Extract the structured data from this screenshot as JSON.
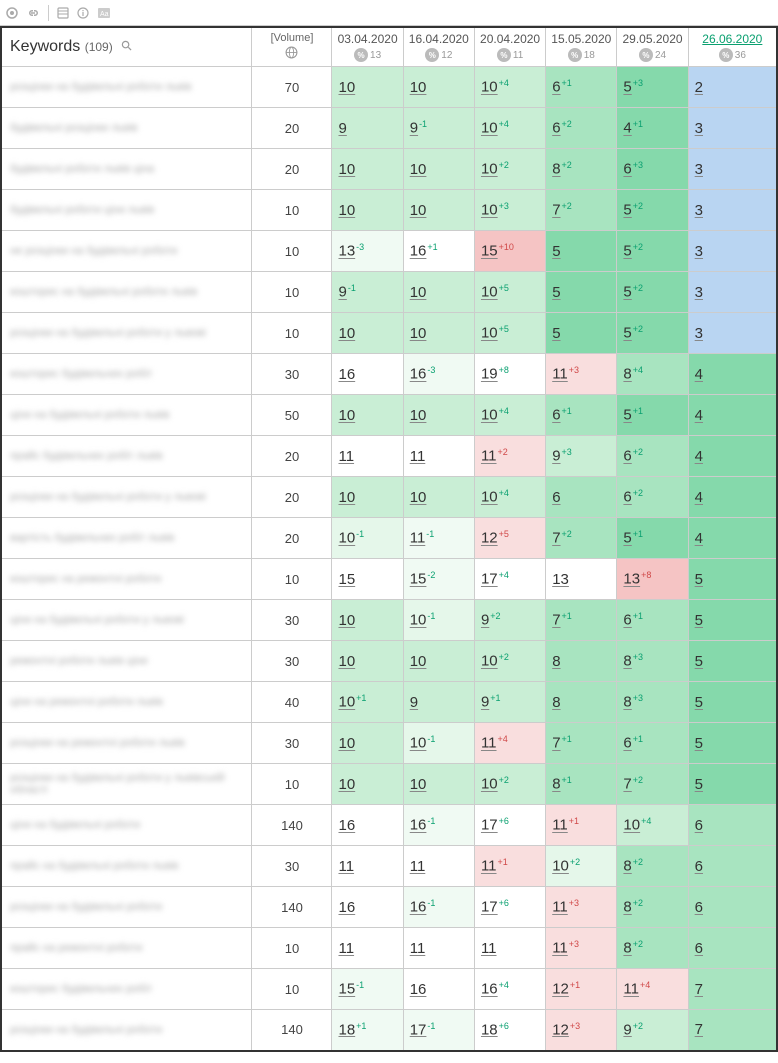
{
  "colors": {
    "blue": "#b9d5f2",
    "green_strong": "#85d9ab",
    "green_mid": "#a8e4c0",
    "green_light": "#c9eed5",
    "green_pale": "#e5f7ea",
    "green_faint": "#f0faf3",
    "red_light": "#f5c4c4",
    "red_pale": "#f9dede",
    "white": "#ffffff",
    "delta_up": "#0aa070",
    "delta_down": "#d04848"
  },
  "header": {
    "keywords_label": "Keywords",
    "keywords_count": "(109)",
    "volume_label": "[Volume]",
    "dates": [
      {
        "label": "03.04.2020",
        "sub": "13",
        "current": false
      },
      {
        "label": "16.04.2020",
        "sub": "12",
        "current": false
      },
      {
        "label": "20.04.2020",
        "sub": "11",
        "current": false
      },
      {
        "label": "15.05.2020",
        "sub": "18",
        "current": false
      },
      {
        "label": "29.05.2020",
        "sub": "24",
        "current": false
      },
      {
        "label": "26.06.2020",
        "sub": "36",
        "current": true
      }
    ]
  },
  "rows": [
    {
      "kw": "розцінки на будівельні роботи львів",
      "vol": "70",
      "cells": [
        {
          "v": "10",
          "d": null,
          "bg": "green_light"
        },
        {
          "v": "10",
          "d": null,
          "bg": "green_light"
        },
        {
          "v": "10",
          "d": "+4",
          "bg": "green_light"
        },
        {
          "v": "6",
          "d": "+1",
          "bg": "green_mid"
        },
        {
          "v": "5",
          "d": "+3",
          "bg": "green_strong"
        },
        {
          "v": "2",
          "d": null,
          "bg": "blue"
        }
      ]
    },
    {
      "kw": "будівельні розцінки львів",
      "vol": "20",
      "cells": [
        {
          "v": "9",
          "d": null,
          "bg": "green_light"
        },
        {
          "v": "9",
          "d": "-1",
          "bg": "green_light"
        },
        {
          "v": "10",
          "d": "+4",
          "bg": "green_light"
        },
        {
          "v": "6",
          "d": "+2",
          "bg": "green_mid"
        },
        {
          "v": "4",
          "d": "+1",
          "bg": "green_strong"
        },
        {
          "v": "3",
          "d": null,
          "bg": "blue"
        }
      ]
    },
    {
      "kw": "будівельні роботи львів ціна",
      "vol": "20",
      "cells": [
        {
          "v": "10",
          "d": null,
          "bg": "green_light"
        },
        {
          "v": "10",
          "d": null,
          "bg": "green_light"
        },
        {
          "v": "10",
          "d": "+2",
          "bg": "green_light"
        },
        {
          "v": "8",
          "d": "+2",
          "bg": "green_mid"
        },
        {
          "v": "6",
          "d": "+3",
          "bg": "green_strong"
        },
        {
          "v": "3",
          "d": null,
          "bg": "blue"
        }
      ]
    },
    {
      "kw": "будівельні роботи ціни львів",
      "vol": "10",
      "cells": [
        {
          "v": "10",
          "d": null,
          "bg": "green_light"
        },
        {
          "v": "10",
          "d": null,
          "bg": "green_light"
        },
        {
          "v": "10",
          "d": "+3",
          "bg": "green_light"
        },
        {
          "v": "7",
          "d": "+2",
          "bg": "green_mid"
        },
        {
          "v": "5",
          "d": "+2",
          "bg": "green_strong"
        },
        {
          "v": "3",
          "d": null,
          "bg": "blue"
        }
      ]
    },
    {
      "kw": "не розцінки на будівельні роботи",
      "vol": "10",
      "cells": [
        {
          "v": "13",
          "d": "-3",
          "bg": "green_faint"
        },
        {
          "v": "16",
          "d": "+1",
          "bg": "white"
        },
        {
          "v": "15",
          "d": "+10",
          "bg": "red_light"
        },
        {
          "v": "5",
          "d": null,
          "bg": "green_strong"
        },
        {
          "v": "5",
          "d": "+2",
          "bg": "green_strong"
        },
        {
          "v": "3",
          "d": null,
          "bg": "blue"
        }
      ]
    },
    {
      "kw": "кошторис на будівельні роботи львів",
      "vol": "10",
      "cells": [
        {
          "v": "9",
          "d": "-1",
          "bg": "green_light"
        },
        {
          "v": "10",
          "d": null,
          "bg": "green_light"
        },
        {
          "v": "10",
          "d": "+5",
          "bg": "green_light"
        },
        {
          "v": "5",
          "d": null,
          "bg": "green_strong"
        },
        {
          "v": "5",
          "d": "+2",
          "bg": "green_strong"
        },
        {
          "v": "3",
          "d": null,
          "bg": "blue"
        }
      ]
    },
    {
      "kw": "розцінки на будівельні роботи у львові",
      "vol": "10",
      "cells": [
        {
          "v": "10",
          "d": null,
          "bg": "green_light"
        },
        {
          "v": "10",
          "d": null,
          "bg": "green_light"
        },
        {
          "v": "10",
          "d": "+5",
          "bg": "green_light"
        },
        {
          "v": "5",
          "d": null,
          "bg": "green_strong"
        },
        {
          "v": "5",
          "d": "+2",
          "bg": "green_strong"
        },
        {
          "v": "3",
          "d": null,
          "bg": "blue"
        }
      ]
    },
    {
      "kw": "кошторис будівельних робіт",
      "vol": "30",
      "cells": [
        {
          "v": "16",
          "d": null,
          "bg": "white"
        },
        {
          "v": "16",
          "d": "-3",
          "bg": "green_faint"
        },
        {
          "v": "19",
          "d": "+8",
          "bg": "white"
        },
        {
          "v": "11",
          "d": "+3",
          "bg": "red_pale"
        },
        {
          "v": "8",
          "d": "+4",
          "bg": "green_mid"
        },
        {
          "v": "4",
          "d": null,
          "bg": "green_strong"
        }
      ]
    },
    {
      "kw": "ціни на будівельні роботи львів",
      "vol": "50",
      "cells": [
        {
          "v": "10",
          "d": null,
          "bg": "green_light"
        },
        {
          "v": "10",
          "d": null,
          "bg": "green_light"
        },
        {
          "v": "10",
          "d": "+4",
          "bg": "green_light"
        },
        {
          "v": "6",
          "d": "+1",
          "bg": "green_mid"
        },
        {
          "v": "5",
          "d": "+1",
          "bg": "green_strong"
        },
        {
          "v": "4",
          "d": null,
          "bg": "green_strong"
        }
      ]
    },
    {
      "kw": "прайс будівельних робіт львів",
      "vol": "20",
      "cells": [
        {
          "v": "11",
          "d": null,
          "bg": "white"
        },
        {
          "v": "11",
          "d": null,
          "bg": "white"
        },
        {
          "v": "11",
          "d": "+2",
          "bg": "red_pale"
        },
        {
          "v": "9",
          "d": "+3",
          "bg": "green_light"
        },
        {
          "v": "6",
          "d": "+2",
          "bg": "green_mid"
        },
        {
          "v": "4",
          "d": null,
          "bg": "green_strong"
        }
      ]
    },
    {
      "kw": "розцінки на будівельні роботи у львові",
      "vol": "20",
      "cells": [
        {
          "v": "10",
          "d": null,
          "bg": "green_light"
        },
        {
          "v": "10",
          "d": null,
          "bg": "green_light"
        },
        {
          "v": "10",
          "d": "+4",
          "bg": "green_light"
        },
        {
          "v": "6",
          "d": null,
          "bg": "green_mid"
        },
        {
          "v": "6",
          "d": "+2",
          "bg": "green_mid"
        },
        {
          "v": "4",
          "d": null,
          "bg": "green_strong"
        }
      ]
    },
    {
      "kw": "вартість будівельних робіт львів",
      "vol": "20",
      "cells": [
        {
          "v": "10",
          "d": "-1",
          "bg": "green_pale"
        },
        {
          "v": "11",
          "d": "-1",
          "bg": "green_faint"
        },
        {
          "v": "12",
          "d": "+5",
          "bg": "red_pale"
        },
        {
          "v": "7",
          "d": "+2",
          "bg": "green_mid"
        },
        {
          "v": "5",
          "d": "+1",
          "bg": "green_strong"
        },
        {
          "v": "4",
          "d": null,
          "bg": "green_strong"
        }
      ]
    },
    {
      "kw": "кошторис на ремонтні роботи",
      "vol": "10",
      "cells": [
        {
          "v": "15",
          "d": null,
          "bg": "white"
        },
        {
          "v": "15",
          "d": "-2",
          "bg": "green_faint"
        },
        {
          "v": "17",
          "d": "+4",
          "bg": "white"
        },
        {
          "v": "13",
          "d": null,
          "bg": "white"
        },
        {
          "v": "13",
          "d": "+8",
          "bg": "red_light"
        },
        {
          "v": "5",
          "d": null,
          "bg": "green_strong"
        }
      ]
    },
    {
      "kw": "ціни на будівельні роботи у львові",
      "vol": "30",
      "cells": [
        {
          "v": "10",
          "d": null,
          "bg": "green_light"
        },
        {
          "v": "10",
          "d": "-1",
          "bg": "green_pale"
        },
        {
          "v": "9",
          "d": "+2",
          "bg": "green_light"
        },
        {
          "v": "7",
          "d": "+1",
          "bg": "green_mid"
        },
        {
          "v": "6",
          "d": "+1",
          "bg": "green_mid"
        },
        {
          "v": "5",
          "d": null,
          "bg": "green_strong"
        }
      ]
    },
    {
      "kw": "ремонтні роботи львів ціни",
      "vol": "30",
      "cells": [
        {
          "v": "10",
          "d": null,
          "bg": "green_light"
        },
        {
          "v": "10",
          "d": null,
          "bg": "green_light"
        },
        {
          "v": "10",
          "d": "+2",
          "bg": "green_light"
        },
        {
          "v": "8",
          "d": null,
          "bg": "green_mid"
        },
        {
          "v": "8",
          "d": "+3",
          "bg": "green_mid"
        },
        {
          "v": "5",
          "d": null,
          "bg": "green_strong"
        }
      ]
    },
    {
      "kw": "ціни на ремонтні роботи львів",
      "vol": "40",
      "cells": [
        {
          "v": "10",
          "d": "+1",
          "bg": "green_light"
        },
        {
          "v": "9",
          "d": null,
          "bg": "green_light"
        },
        {
          "v": "9",
          "d": "+1",
          "bg": "green_light"
        },
        {
          "v": "8",
          "d": null,
          "bg": "green_mid"
        },
        {
          "v": "8",
          "d": "+3",
          "bg": "green_mid"
        },
        {
          "v": "5",
          "d": null,
          "bg": "green_strong"
        }
      ]
    },
    {
      "kw": "розцінки на ремонтні роботи львів",
      "vol": "30",
      "cells": [
        {
          "v": "10",
          "d": null,
          "bg": "green_light"
        },
        {
          "v": "10",
          "d": "-1",
          "bg": "green_pale"
        },
        {
          "v": "11",
          "d": "+4",
          "bg": "red_pale"
        },
        {
          "v": "7",
          "d": "+1",
          "bg": "green_mid"
        },
        {
          "v": "6",
          "d": "+1",
          "bg": "green_mid"
        },
        {
          "v": "5",
          "d": null,
          "bg": "green_strong"
        }
      ]
    },
    {
      "kw": "розцінки на будівельні роботи у львівській області",
      "vol": "10",
      "cells": [
        {
          "v": "10",
          "d": null,
          "bg": "green_light"
        },
        {
          "v": "10",
          "d": null,
          "bg": "green_light"
        },
        {
          "v": "10",
          "d": "+2",
          "bg": "green_light"
        },
        {
          "v": "8",
          "d": "+1",
          "bg": "green_mid"
        },
        {
          "v": "7",
          "d": "+2",
          "bg": "green_mid"
        },
        {
          "v": "5",
          "d": null,
          "bg": "green_strong"
        }
      ]
    },
    {
      "kw": "ціни на будівельні роботи",
      "vol": "140",
      "cells": [
        {
          "v": "16",
          "d": null,
          "bg": "white"
        },
        {
          "v": "16",
          "d": "-1",
          "bg": "green_faint"
        },
        {
          "v": "17",
          "d": "+6",
          "bg": "white"
        },
        {
          "v": "11",
          "d": "+1",
          "bg": "red_pale"
        },
        {
          "v": "10",
          "d": "+4",
          "bg": "green_light"
        },
        {
          "v": "6",
          "d": null,
          "bg": "green_mid"
        }
      ]
    },
    {
      "kw": "прайс на будівельні роботи львів",
      "vol": "30",
      "cells": [
        {
          "v": "11",
          "d": null,
          "bg": "white"
        },
        {
          "v": "11",
          "d": null,
          "bg": "white"
        },
        {
          "v": "11",
          "d": "+1",
          "bg": "red_pale"
        },
        {
          "v": "10",
          "d": "+2",
          "bg": "green_pale"
        },
        {
          "v": "8",
          "d": "+2",
          "bg": "green_mid"
        },
        {
          "v": "6",
          "d": null,
          "bg": "green_mid"
        }
      ]
    },
    {
      "kw": "розцінки на будівельні роботи",
      "vol": "140",
      "cells": [
        {
          "v": "16",
          "d": null,
          "bg": "white"
        },
        {
          "v": "16",
          "d": "-1",
          "bg": "green_faint"
        },
        {
          "v": "17",
          "d": "+6",
          "bg": "white"
        },
        {
          "v": "11",
          "d": "+3",
          "bg": "red_pale"
        },
        {
          "v": "8",
          "d": "+2",
          "bg": "green_mid"
        },
        {
          "v": "6",
          "d": null,
          "bg": "green_mid"
        }
      ]
    },
    {
      "kw": "прайс на ремонтні роботи",
      "vol": "10",
      "cells": [
        {
          "v": "11",
          "d": null,
          "bg": "white"
        },
        {
          "v": "11",
          "d": null,
          "bg": "white"
        },
        {
          "v": "11",
          "d": null,
          "bg": "white"
        },
        {
          "v": "11",
          "d": "+3",
          "bg": "red_pale"
        },
        {
          "v": "8",
          "d": "+2",
          "bg": "green_mid"
        },
        {
          "v": "6",
          "d": null,
          "bg": "green_mid"
        }
      ]
    },
    {
      "kw": "кошторис будівельних робіт",
      "vol": "10",
      "cells": [
        {
          "v": "15",
          "d": "-1",
          "bg": "green_faint"
        },
        {
          "v": "16",
          "d": null,
          "bg": "white"
        },
        {
          "v": "16",
          "d": "+4",
          "bg": "white"
        },
        {
          "v": "12",
          "d": "+1",
          "bg": "red_pale"
        },
        {
          "v": "11",
          "d": "+4",
          "bg": "red_pale"
        },
        {
          "v": "7",
          "d": null,
          "bg": "green_mid"
        }
      ]
    },
    {
      "kw": "розцінки на будівельні роботи",
      "vol": "140",
      "cells": [
        {
          "v": "18",
          "d": "+1",
          "bg": "green_faint"
        },
        {
          "v": "17",
          "d": "-1",
          "bg": "green_faint"
        },
        {
          "v": "18",
          "d": "+6",
          "bg": "white"
        },
        {
          "v": "12",
          "d": "+3",
          "bg": "red_pale"
        },
        {
          "v": "9",
          "d": "+2",
          "bg": "green_light"
        },
        {
          "v": "7",
          "d": null,
          "bg": "green_mid"
        }
      ]
    }
  ]
}
